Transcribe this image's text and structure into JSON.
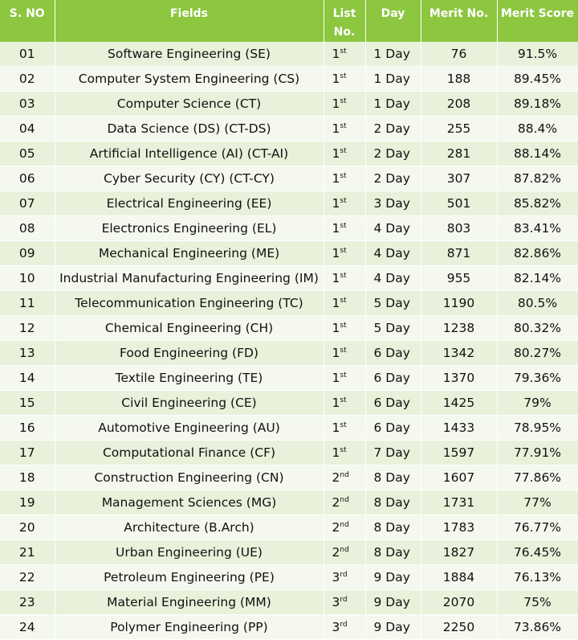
{
  "headers": {
    "sno": "S. NO",
    "fields": "Fields",
    "list_line1": "List",
    "list_line2": "No.",
    "day": "Day",
    "merit_no": "Merit No.",
    "merit_score": "Merit Score"
  },
  "rows": [
    {
      "sno": "01",
      "field": "Software Engineering (SE)",
      "list_num": "1",
      "list_sup": "st",
      "day": "1 Day",
      "merit_no": "76",
      "score": "91.5%"
    },
    {
      "sno": "02",
      "field": "Computer System Engineering (CS)",
      "list_num": "1",
      "list_sup": "st",
      "day": "1 Day",
      "merit_no": "188",
      "score": "89.45%"
    },
    {
      "sno": "03",
      "field": "Computer Science (CT)",
      "list_num": "1",
      "list_sup": "st",
      "day": "1 Day",
      "merit_no": "208",
      "score": "89.18%"
    },
    {
      "sno": "04",
      "field": "Data Science (DS) (CT-DS)",
      "list_num": "1",
      "list_sup": "st",
      "day": "2 Day",
      "merit_no": "255",
      "score": "88.4%"
    },
    {
      "sno": "05",
      "field": "Artificial Intelligence (AI) (CT-AI)",
      "list_num": "1",
      "list_sup": "st",
      "day": "2 Day",
      "merit_no": "281",
      "score": "88.14%"
    },
    {
      "sno": "06",
      "field": "Cyber Security (CY) (CT-CY)",
      "list_num": "1",
      "list_sup": "st",
      "day": "2 Day",
      "merit_no": "307",
      "score": "87.82%"
    },
    {
      "sno": "07",
      "field": "Electrical Engineering (EE)",
      "list_num": "1",
      "list_sup": "st",
      "day": "3 Day",
      "merit_no": "501",
      "score": "85.82%"
    },
    {
      "sno": "08",
      "field": "Electronics Engineering (EL)",
      "list_num": "1",
      "list_sup": "st",
      "day": "4 Day",
      "merit_no": "803",
      "score": "83.41%"
    },
    {
      "sno": "09",
      "field": "Mechanical Engineering (ME)",
      "list_num": "1",
      "list_sup": "st",
      "day": "4 Day",
      "merit_no": "871",
      "score": "82.86%"
    },
    {
      "sno": "10",
      "field": "Industrial Manufacturing Engineering (IM)",
      "list_num": "1",
      "list_sup": "st",
      "day": "4 Day",
      "merit_no": "955",
      "score": "82.14%"
    },
    {
      "sno": "11",
      "field": "Telecommunication Engineering (TC)",
      "list_num": "1",
      "list_sup": "st",
      "day": "5 Day",
      "merit_no": "1190",
      "score": "80.5%"
    },
    {
      "sno": "12",
      "field": "Chemical Engineering (CH)",
      "list_num": "1",
      "list_sup": "st",
      "day": "5 Day",
      "merit_no": "1238",
      "score": "80.32%"
    },
    {
      "sno": "13",
      "field": "Food Engineering (FD)",
      "list_num": "1",
      "list_sup": "st",
      "day": "6 Day",
      "merit_no": "1342",
      "score": "80.27%"
    },
    {
      "sno": "14",
      "field": "Textile Engineering (TE)",
      "list_num": "1",
      "list_sup": "st",
      "day": "6 Day",
      "merit_no": "1370",
      "score": "79.36%"
    },
    {
      "sno": "15",
      "field": "Civil Engineering (CE)",
      "list_num": "1",
      "list_sup": "st",
      "day": "6 Day",
      "merit_no": "1425",
      "score": "79%"
    },
    {
      "sno": "16",
      "field": "Automotive Engineering (AU)",
      "list_num": "1",
      "list_sup": "st",
      "day": "6 Day",
      "merit_no": "1433",
      "score": "78.95%"
    },
    {
      "sno": "17",
      "field": "Computational Finance (CF)",
      "list_num": "1",
      "list_sup": "st",
      "day": "7 Day",
      "merit_no": "1597",
      "score": "77.91%"
    },
    {
      "sno": "18",
      "field": "Construction Engineering (CN)",
      "list_num": "2",
      "list_sup": "nd",
      "day": "8 Day",
      "merit_no": "1607",
      "score": "77.86%"
    },
    {
      "sno": "19",
      "field": "Management Sciences (MG)",
      "list_num": "2",
      "list_sup": "nd",
      "day": "8 Day",
      "merit_no": "1731",
      "score": "77%"
    },
    {
      "sno": "20",
      "field": "Architecture (B.Arch)",
      "list_num": "2",
      "list_sup": "nd",
      "day": "8 Day",
      "merit_no": "1783",
      "score": "76.77%"
    },
    {
      "sno": "21",
      "field": "Urban Engineering (UE)",
      "list_num": "2",
      "list_sup": "nd",
      "day": "8 Day",
      "merit_no": "1827",
      "score": "76.45%"
    },
    {
      "sno": "22",
      "field": "Petroleum Engineering (PE)",
      "list_num": "3",
      "list_sup": "rd",
      "day": "9 Day",
      "merit_no": "1884",
      "score": "76.13%"
    },
    {
      "sno": "23",
      "field": "Material Engineering (MM)",
      "list_num": "3",
      "list_sup": "rd",
      "day": "9 Day",
      "merit_no": "2070",
      "score": "75%"
    },
    {
      "sno": "24",
      "field": "Polymer Engineering (PP)",
      "list_num": "3",
      "list_sup": "rd",
      "day": "9 Day",
      "merit_no": "2250",
      "score": "73.86%"
    }
  ]
}
